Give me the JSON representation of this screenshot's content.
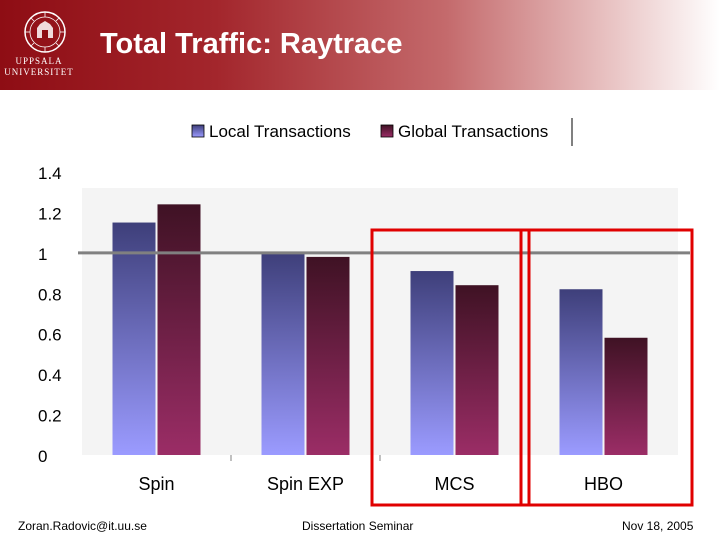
{
  "header": {
    "title": "Total Traffic: Raytrace",
    "logo": {
      "line1": "UPPSALA",
      "line2": "UNIVERSITET"
    }
  },
  "footer": {
    "left": "Zoran.Radovic@it.uu.se",
    "center": "Dissertation Seminar",
    "right": "Nov 18, 2005"
  },
  "colors": {
    "header_start": "#8e0d14",
    "local_top": "#3e3f7a",
    "local_bottom": "#9b9bff",
    "global_top": "#3f1224",
    "global_bottom": "#9b2d66",
    "highlight_box": "#e00000",
    "reference_line": "#808080"
  },
  "chart_data": {
    "type": "bar",
    "categories": [
      "Spin",
      "Spin EXP",
      "MCS",
      "HBO"
    ],
    "series": [
      {
        "name": "Local Transactions",
        "values": [
          1.15,
          1.0,
          0.91,
          0.82
        ]
      },
      {
        "name": "Global Transactions",
        "values": [
          1.24,
          0.98,
          0.84,
          0.58
        ]
      }
    ],
    "ylim": [
      0,
      1.4
    ],
    "yticks": [
      "0",
      "0.2",
      "0.4",
      "0.6",
      "0.8",
      "1",
      "1.2",
      "1.4"
    ],
    "reference_line": 1,
    "legend_position": "top",
    "highlighted_categories": [
      "MCS",
      "HBO"
    ],
    "grid": false
  }
}
